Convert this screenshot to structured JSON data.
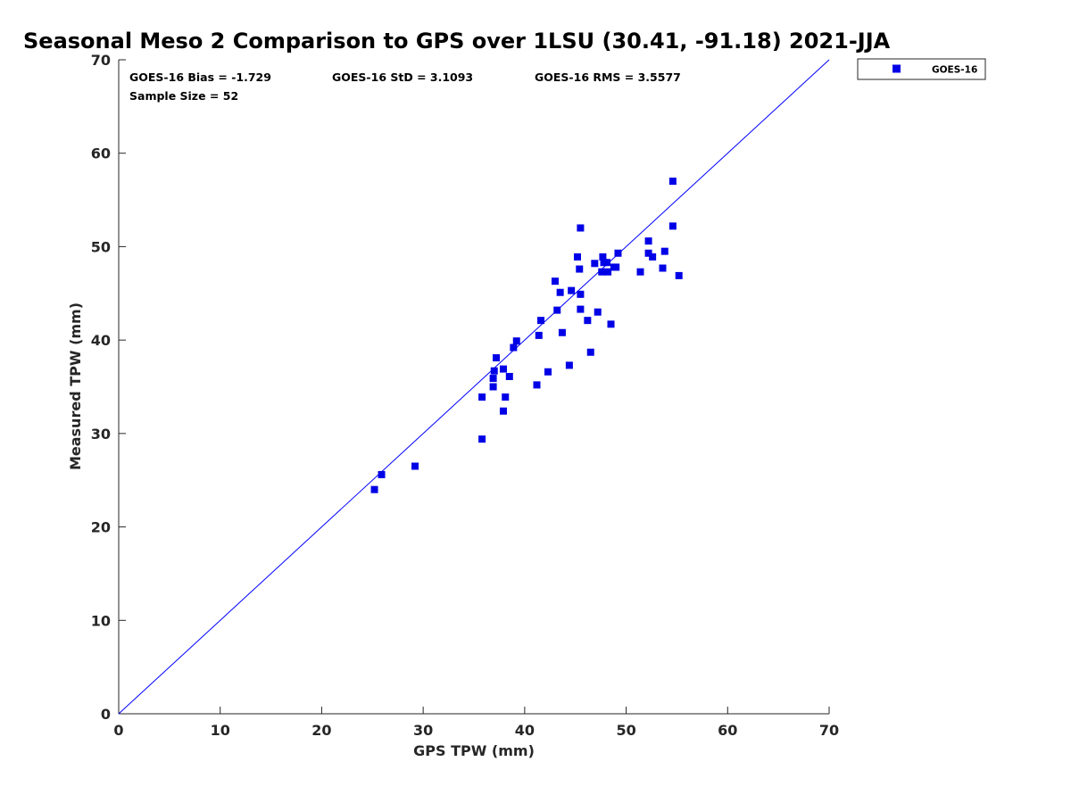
{
  "chart_data": {
    "type": "scatter",
    "title": "Seasonal Meso 2 Comparison to GPS over 1LSU (30.41, -91.18) 2021-JJA",
    "xlabel": "GPS TPW (mm)",
    "ylabel": "Measured TPW (mm)",
    "xlim": [
      0,
      70
    ],
    "ylim": [
      0,
      70
    ],
    "xticks": [
      "0",
      "10",
      "20",
      "30",
      "40",
      "50",
      "60",
      "70"
    ],
    "yticks": [
      "0",
      "10",
      "20",
      "30",
      "40",
      "50",
      "60",
      "70"
    ],
    "grid": false,
    "legend_position": "outside-top-right",
    "reference_line": {
      "name": "1:1 line",
      "from": [
        0,
        0
      ],
      "to": [
        70,
        70
      ],
      "color": "#0000ff"
    },
    "stats": {
      "bias": "GOES-16 Bias = -1.729",
      "std": "GOES-16 StD = 3.1093",
      "rms": "GOES-16 RMS = 3.5577",
      "sample": "Sample Size = 52"
    },
    "series": [
      {
        "name": "GOES-16",
        "color": "#0000e6",
        "marker": "square",
        "points": [
          [
            25.2,
            24.0
          ],
          [
            25.9,
            25.6
          ],
          [
            29.2,
            26.5
          ],
          [
            35.8,
            29.4
          ],
          [
            35.8,
            33.9
          ],
          [
            36.9,
            35.0
          ],
          [
            36.9,
            35.9
          ],
          [
            37.0,
            36.7
          ],
          [
            37.2,
            38.1
          ],
          [
            37.9,
            32.4
          ],
          [
            37.9,
            36.9
          ],
          [
            38.1,
            33.9
          ],
          [
            38.5,
            36.1
          ],
          [
            38.9,
            39.2
          ],
          [
            39.2,
            39.9
          ],
          [
            41.2,
            35.2
          ],
          [
            41.4,
            40.5
          ],
          [
            41.6,
            42.1
          ],
          [
            42.3,
            36.6
          ],
          [
            43.0,
            46.3
          ],
          [
            43.2,
            43.2
          ],
          [
            43.5,
            45.1
          ],
          [
            43.7,
            40.8
          ],
          [
            44.4,
            37.3
          ],
          [
            44.6,
            45.3
          ],
          [
            45.2,
            48.9
          ],
          [
            45.4,
            47.6
          ],
          [
            45.5,
            44.9
          ],
          [
            45.5,
            43.3
          ],
          [
            45.5,
            52.0
          ],
          [
            46.2,
            42.1
          ],
          [
            46.5,
            38.7
          ],
          [
            46.9,
            48.2
          ],
          [
            47.2,
            43.0
          ],
          [
            47.6,
            47.3
          ],
          [
            47.7,
            48.9
          ],
          [
            47.8,
            48.3
          ],
          [
            48.2,
            47.3
          ],
          [
            48.1,
            48.3
          ],
          [
            48.5,
            41.7
          ],
          [
            48.8,
            47.8
          ],
          [
            49.0,
            47.8
          ],
          [
            49.2,
            49.3
          ],
          [
            51.4,
            47.3
          ],
          [
            52.2,
            50.6
          ],
          [
            52.2,
            49.3
          ],
          [
            52.6,
            48.9
          ],
          [
            53.6,
            47.7
          ],
          [
            53.8,
            49.5
          ],
          [
            54.6,
            57.0
          ],
          [
            54.6,
            52.2
          ],
          [
            55.2,
            46.9
          ]
        ]
      }
    ]
  }
}
